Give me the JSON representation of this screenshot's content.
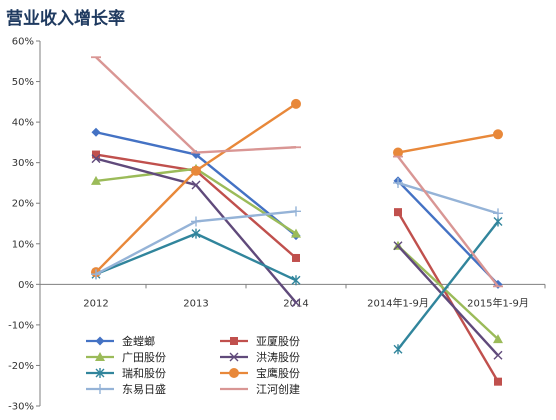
{
  "chart_data": {
    "type": "line",
    "title": "营业收入增长率",
    "categories": [
      "2012",
      "2013",
      "2014",
      "2014年1-9月",
      "2015年1-9月"
    ],
    "y_ticks": [
      "60%",
      "50%",
      "40%",
      "30%",
      "20%",
      "10%",
      "0%",
      "-10%",
      "-20%",
      "-30%"
    ],
    "ylim": [
      -30,
      60
    ],
    "grid": false,
    "legend_position": "bottom-left",
    "series": [
      {
        "name": "金螳螂",
        "color": "#4472c4",
        "marker": "diamond",
        "segments": [
          {
            "cats": [
              0,
              1,
              2
            ],
            "values": [
              37.5,
              32,
              12
            ]
          },
          {
            "cats": [
              3,
              4
            ],
            "values": [
              25.5,
              0
            ]
          }
        ]
      },
      {
        "name": "亚厦股份",
        "color": "#c0504d",
        "marker": "square",
        "segments": [
          {
            "cats": [
              0,
              1,
              2
            ],
            "values": [
              32,
              28,
              6.5
            ]
          },
          {
            "cats": [
              3,
              4
            ],
            "values": [
              17.8,
              -24
            ]
          }
        ]
      },
      {
        "name": "广田股份",
        "color": "#9bbb59",
        "marker": "triangle",
        "segments": [
          {
            "cats": [
              0,
              1,
              2
            ],
            "values": [
              25.5,
              28.5,
              12.5
            ]
          },
          {
            "cats": [
              3,
              4
            ],
            "values": [
              9.5,
              -13.5
            ]
          }
        ]
      },
      {
        "name": "洪涛股份",
        "color": "#604a7b",
        "marker": "x",
        "segments": [
          {
            "cats": [
              0,
              1,
              2
            ],
            "values": [
              31,
              24.5,
              -4.5
            ]
          },
          {
            "cats": [
              3,
              4
            ],
            "values": [
              9.5,
              -17.5
            ]
          }
        ]
      },
      {
        "name": "瑞和股份",
        "color": "#31859c",
        "marker": "star",
        "segments": [
          {
            "cats": [
              0,
              1,
              2
            ],
            "values": [
              2.5,
              12.5,
              1
            ]
          },
          {
            "cats": [
              3,
              4
            ],
            "values": [
              -16,
              15.5
            ]
          }
        ]
      },
      {
        "name": "宝鹰股份",
        "color": "#e8883a",
        "marker": "circle",
        "segments": [
          {
            "cats": [
              0,
              1,
              2
            ],
            "values": [
              3,
              28,
              44.5
            ]
          },
          {
            "cats": [
              3,
              4
            ],
            "values": [
              32.5,
              37
            ]
          }
        ]
      },
      {
        "name": "东易日盛",
        "color": "#95b3d7",
        "marker": "plus",
        "segments": [
          {
            "cats": [
              0,
              1,
              2
            ],
            "values": [
              2.5,
              15.5,
              18
            ]
          },
          {
            "cats": [
              3,
              4
            ],
            "values": [
              25,
              17.5
            ]
          }
        ]
      },
      {
        "name": "江河创建",
        "color": "#d99694",
        "marker": "dash",
        "segments": [
          {
            "cats": [
              0,
              1,
              2
            ],
            "values": [
              56,
              32.5,
              33.8
            ]
          },
          {
            "cats": [
              3,
              4
            ],
            "values": [
              31.5,
              -0.5
            ]
          }
        ]
      }
    ]
  }
}
